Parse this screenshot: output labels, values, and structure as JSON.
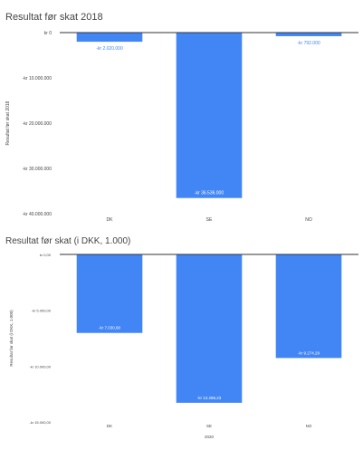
{
  "chart_data": [
    {
      "type": "bar",
      "title": "Resultat før skat 2018",
      "xlabel": "",
      "ylabel": "Resultat før skat 2018",
      "categories": [
        "DK",
        "SE",
        "NO"
      ],
      "values": [
        -2020000,
        -36536000,
        -792000
      ],
      "data_labels": [
        "-kr 2.020.000",
        "-kr 36.536.000",
        "-kr 792.000"
      ],
      "yticks": [
        0,
        -10000000,
        -20000000,
        -30000000,
        -40000000
      ],
      "ytick_labels": [
        "kr 0",
        "-kr 10.000.000",
        "-kr 20.000.000",
        "-kr 30.000.000",
        "-kr 40.000.000"
      ],
      "ylim": [
        -40000000,
        0
      ],
      "grid": false,
      "color": "#4285f4"
    },
    {
      "type": "bar",
      "title": "Resultat før skat (i DKK, 1.000)",
      "xlabel": "2020",
      "ylabel": "Resultat før skat (i DKK, 1.000)",
      "categories": [
        "DK",
        "SE",
        "NO"
      ],
      "values": [
        -7030.9,
        -13286.23,
        -9274.29
      ],
      "data_labels": [
        "-kr 7.030,90",
        "-kr 13.286,23",
        "-kr 9.274,29"
      ],
      "yticks": [
        0,
        -5000,
        -10000,
        -15000
      ],
      "ytick_labels": [
        "kr 0,00",
        "-kr 5.000,00",
        "-kr 10.000,00",
        "-kr 15.000,00"
      ],
      "ylim": [
        -15000,
        0
      ],
      "grid": false,
      "color": "#4285f4"
    }
  ]
}
